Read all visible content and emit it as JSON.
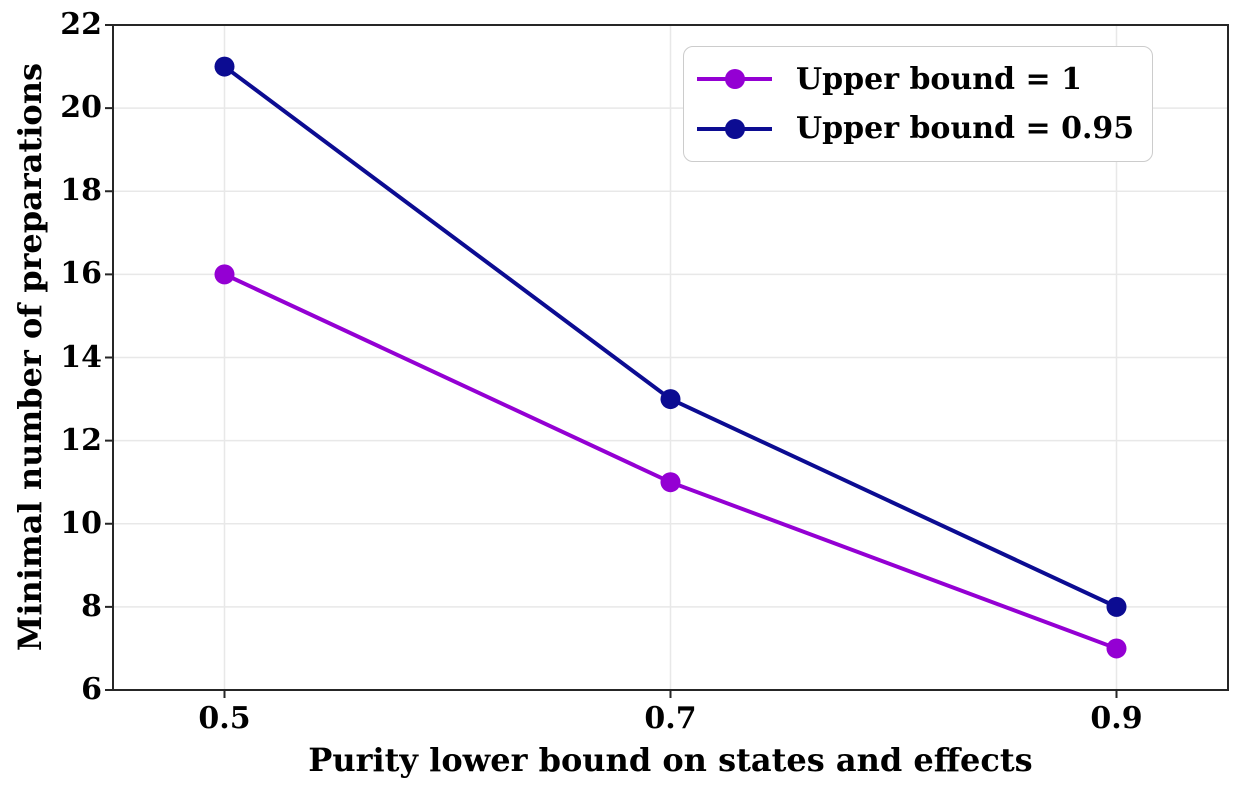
{
  "figure": {
    "background": "#ffffff"
  },
  "chart_data": {
    "type": "line",
    "title": "",
    "xlabel": "Purity lower bound on states and effects",
    "ylabel": "Minimal number of preparations",
    "x": [
      0.5,
      0.7,
      0.9
    ],
    "series": [
      {
        "name": "Upper bound = 1",
        "color": "#9400d3",
        "values": [
          16,
          11,
          7
        ]
      },
      {
        "name": "Upper bound = 0.95",
        "color": "#0c0c92",
        "values": [
          21,
          13,
          8
        ]
      }
    ],
    "xticks": [
      "0.5",
      "0.7",
      "0.9"
    ],
    "yticks": [
      6,
      8,
      10,
      12,
      14,
      16,
      18,
      20,
      22
    ],
    "xlim": [
      0.45,
      0.95
    ],
    "ylim": [
      6,
      22
    ],
    "grid": true,
    "marker": "circle",
    "legend": {
      "position": "upper right",
      "entries": [
        "Upper bound = 1",
        "Upper bound = 0.95"
      ]
    },
    "colors": {
      "grid": "#e8e8e8",
      "axes": "#262626",
      "text": "#000000"
    }
  }
}
